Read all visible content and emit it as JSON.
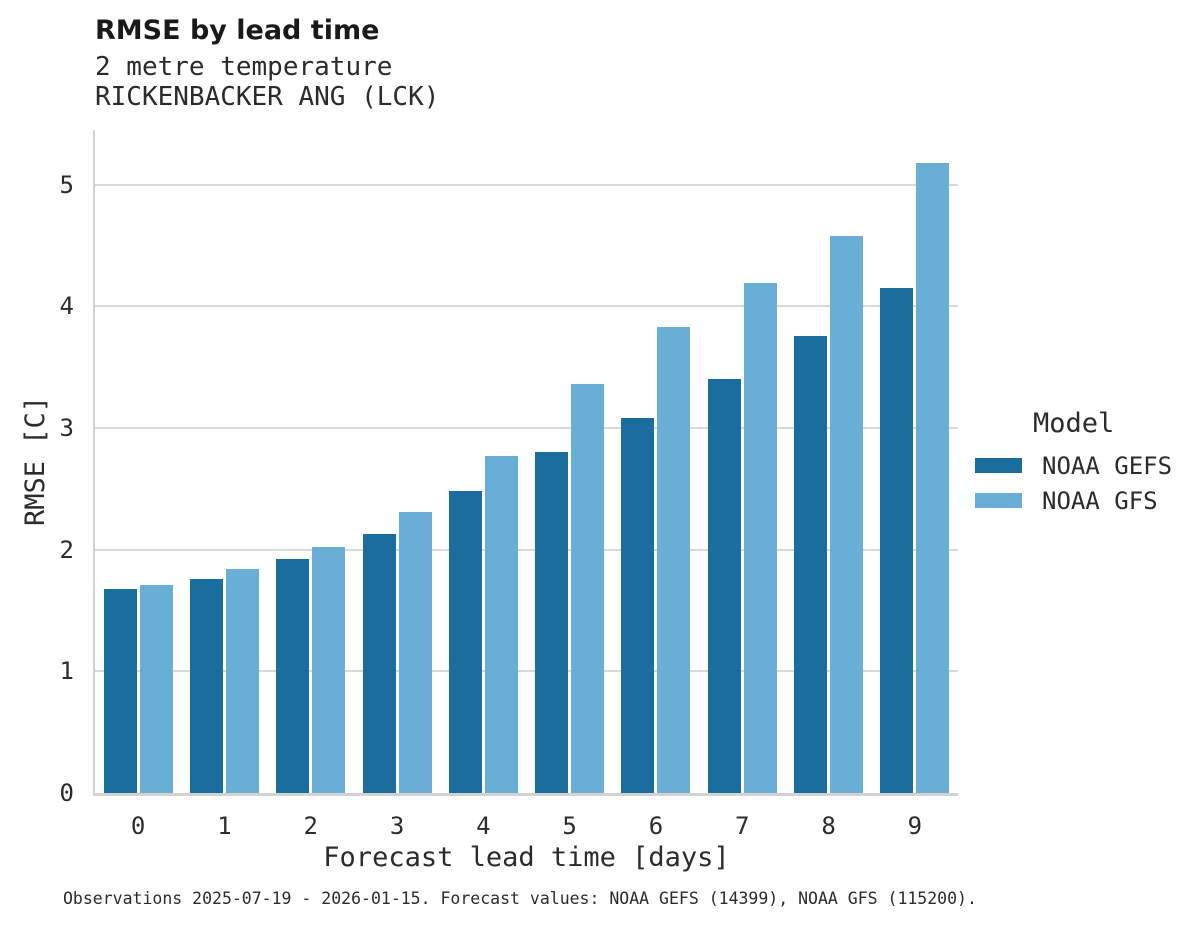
{
  "chart_data": {
    "type": "bar",
    "title": "RMSE by lead time",
    "subtitle": [
      "2 metre temperature",
      "RICKENBACKER ANG (LCK)"
    ],
    "caption": "Observations 2025-07-19 - 2026-01-15. Forecast values: NOAA GEFS (14399), NOAA GFS (115200).",
    "xlabel": "Forecast lead time [days]",
    "ylabel": "RMSE [C]",
    "categories": [
      "0",
      "1",
      "2",
      "3",
      "4",
      "5",
      "6",
      "7",
      "8",
      "9"
    ],
    "series": [
      {
        "name": "NOAA GEFS",
        "color": "#1a6d9d",
        "values": [
          1.68,
          1.76,
          1.92,
          2.13,
          2.48,
          2.8,
          3.08,
          3.4,
          3.76,
          4.15
        ]
      },
      {
        "name": "NOAA GFS",
        "color": "#69aed6",
        "values": [
          1.71,
          1.84,
          2.02,
          2.31,
          2.77,
          3.36,
          3.83,
          4.19,
          4.58,
          5.18
        ]
      }
    ],
    "ylim": [
      0,
      5.45
    ],
    "yticks": [
      0,
      1,
      2,
      3,
      4,
      5
    ],
    "grid": "horizontal-only",
    "background": "#ffffff",
    "gridline_color": "#d9d9d9",
    "legend_position": "right",
    "legend_title": "Model"
  }
}
